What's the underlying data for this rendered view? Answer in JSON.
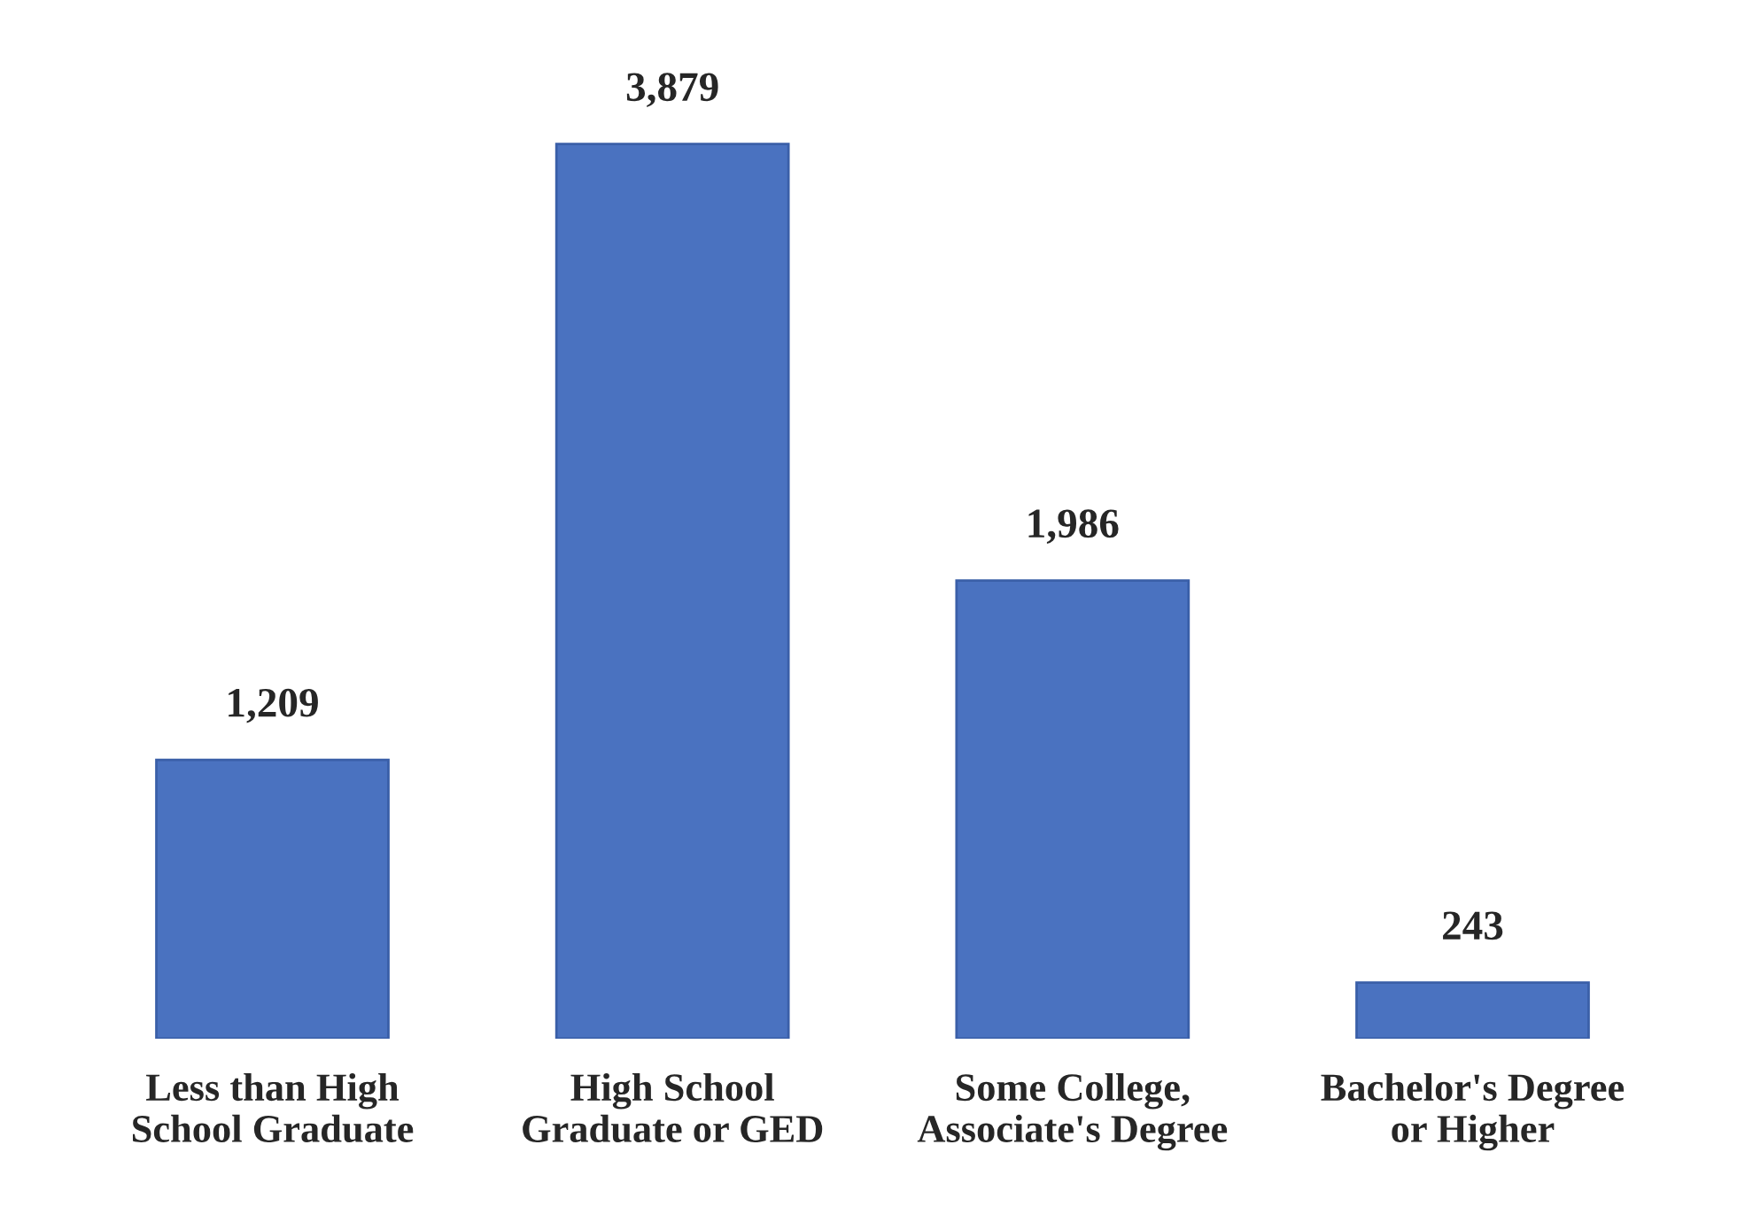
{
  "chart_data": {
    "type": "bar",
    "categories": [
      "Less than High\nSchool Graduate",
      "High School\nGraduate or GED",
      "Some College,\nAssociate's Degree",
      "Bachelor's Degree\nor Higher"
    ],
    "values": [
      1209,
      3879,
      1986,
      243
    ],
    "color": "#4a72c0",
    "value_labels": [
      "1,209",
      "3,879",
      "1,986",
      "243"
    ],
    "tick_labels": "x",
    "grid": false,
    "legend": false
  }
}
